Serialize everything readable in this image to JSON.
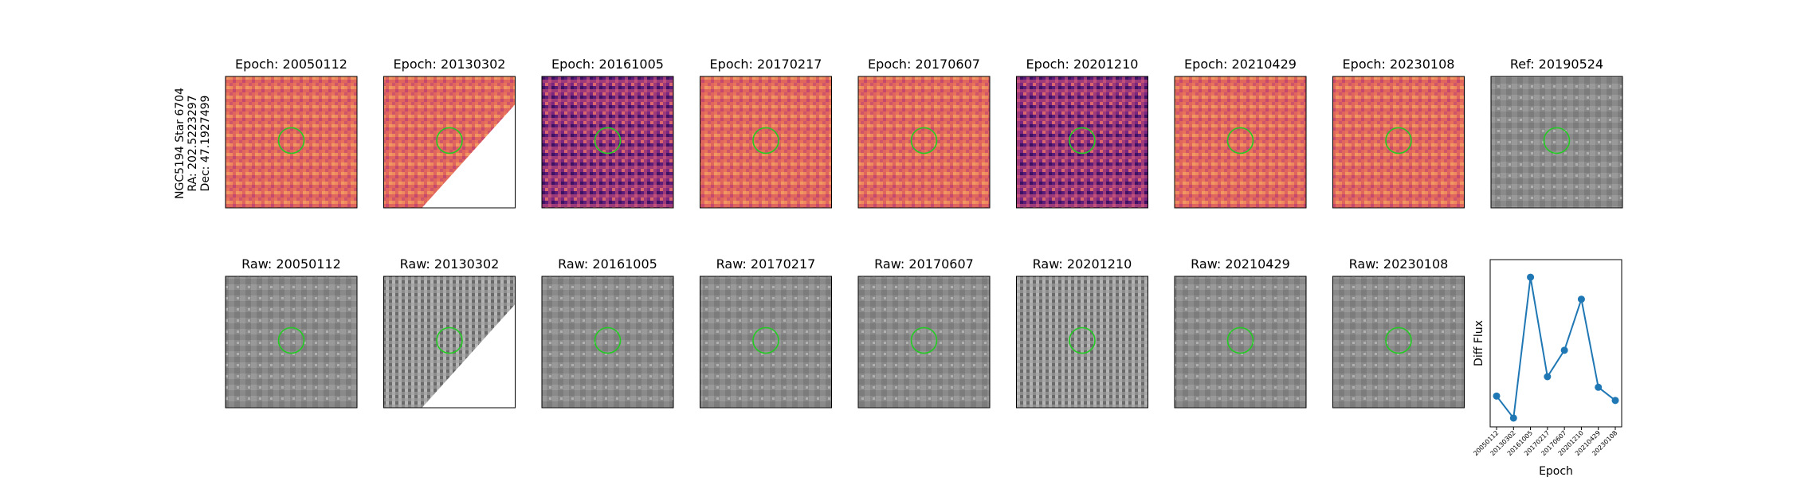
{
  "side_label": {
    "line1": "NGC5194 Star 6704",
    "line2": "RA: 202.5223297",
    "line3": "Dec: 47.1927499"
  },
  "diff_panels": [
    {
      "title": "Epoch: 20050112",
      "colormap": "magma",
      "masked_corner": false
    },
    {
      "title": "Epoch: 20130302",
      "colormap": "magma",
      "masked_corner": true
    },
    {
      "title": "Epoch: 20161005",
      "colormap": "magma",
      "masked_corner": false
    },
    {
      "title": "Epoch: 20170217",
      "colormap": "magma",
      "masked_corner": false
    },
    {
      "title": "Epoch: 20170607",
      "colormap": "magma",
      "masked_corner": false
    },
    {
      "title": "Epoch: 20201210",
      "colormap": "magma",
      "masked_corner": false
    },
    {
      "title": "Epoch: 20210429",
      "colormap": "magma",
      "masked_corner": false
    },
    {
      "title": "Epoch: 20230108",
      "colormap": "magma",
      "masked_corner": false
    }
  ],
  "ref_panel": {
    "title": "Ref: 20190524",
    "colormap": "gray"
  },
  "raw_panels": [
    {
      "title": "Raw: 20050112",
      "masked_corner": false
    },
    {
      "title": "Raw: 20130302",
      "masked_corner": true
    },
    {
      "title": "Raw: 20161005",
      "masked_corner": false
    },
    {
      "title": "Raw: 20170217",
      "masked_corner": false
    },
    {
      "title": "Raw: 20170607",
      "masked_corner": false
    },
    {
      "title": "Raw: 20201210",
      "masked_corner": false
    },
    {
      "title": "Raw: 20210429",
      "masked_corner": false
    },
    {
      "title": "Raw: 20230108",
      "masked_corner": false
    }
  ],
  "colors": {
    "circle": "#22cc22",
    "line": "#1f77b4",
    "ref_background": "#8a8a8a"
  },
  "chart_data": {
    "type": "line",
    "xlabel": "Epoch",
    "ylabel": "Diff Flux",
    "categories": [
      "20050112",
      "20130302",
      "20161005",
      "20170217",
      "20170607",
      "20201210",
      "20210429",
      "20230108"
    ],
    "values": [
      0.3,
      0.05,
      1.65,
      0.52,
      0.82,
      1.4,
      0.4,
      0.25
    ],
    "ylim": [
      -0.05,
      1.85
    ],
    "y_ticks_shown": false,
    "grid": false,
    "marker": "circle"
  }
}
